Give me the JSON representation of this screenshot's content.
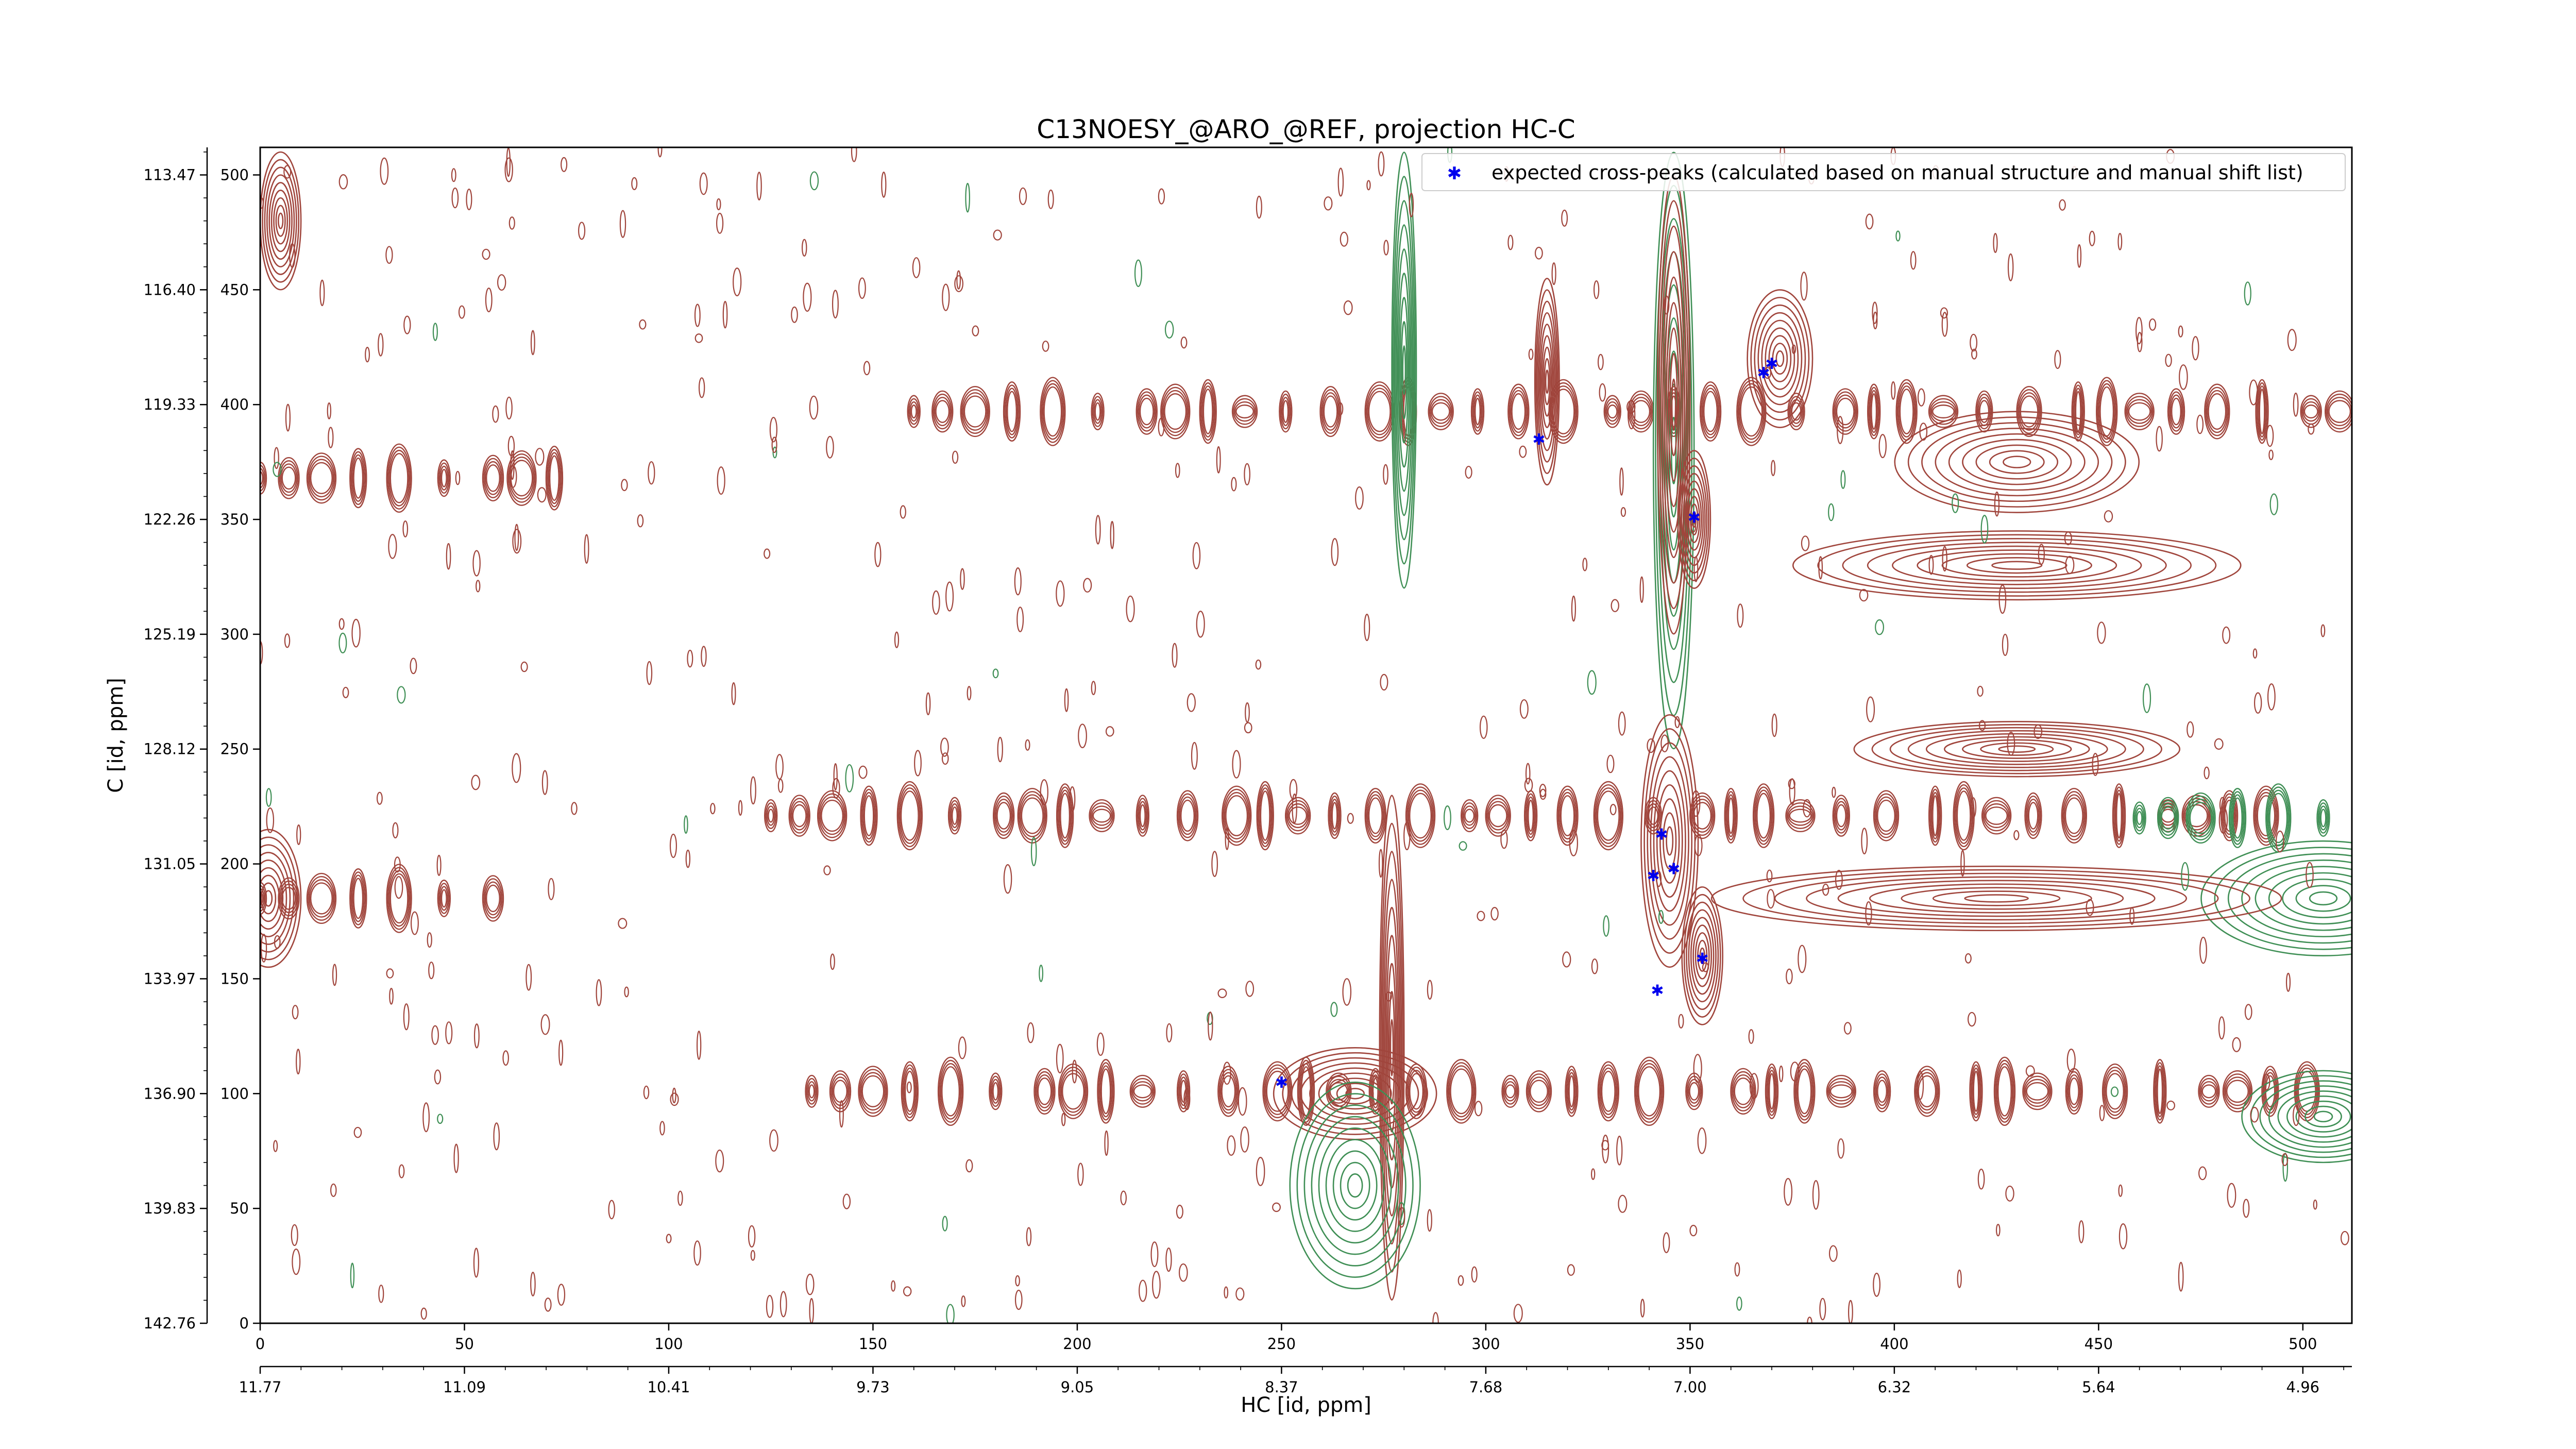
{
  "chart_data": {
    "type": "scatter",
    "title": "C13NOESY_@ARO_@REF, projection HC-C",
    "xlabel": "HC [id, ppm]",
    "ylabel": "C [id, ppm]",
    "xlim": [
      0,
      512
    ],
    "ylim": [
      0,
      512
    ],
    "x_ticks": [
      0,
      50,
      100,
      150,
      200,
      250,
      300,
      350,
      400,
      450,
      500
    ],
    "x_ppm_ticks": [
      "11.77",
      "11.09",
      "10.41",
      "9.73",
      "9.05",
      "8.37",
      "7.68",
      "7.00",
      "6.32",
      "5.64",
      "4.96"
    ],
    "y_ticks": [
      0,
      50,
      100,
      150,
      200,
      250,
      300,
      350,
      400,
      450,
      500
    ],
    "y_ppm_ticks": [
      "142.76",
      "139.83",
      "136.90",
      "133.97",
      "131.05",
      "128.12",
      "125.19",
      "122.26",
      "119.33",
      "116.40",
      "113.47"
    ],
    "legend": {
      "placement": "top-right"
    },
    "colors": {
      "positive": "#a0453c",
      "negative": "#3f8f55",
      "peaks": "#0000ee"
    },
    "series": [
      {
        "name": "expected cross-peaks (calculated based on manual structure and manual shift list)",
        "marker": "star",
        "points": [
          [
            250,
            105
          ],
          [
            313,
            385
          ],
          [
            351,
            351
          ],
          [
            368,
            414
          ],
          [
            370,
            418
          ],
          [
            343,
            213
          ],
          [
            341,
            195
          ],
          [
            346,
            198
          ],
          [
            342,
            145
          ],
          [
            353,
            159
          ]
        ]
      }
    ],
    "contour_features": [
      {
        "sign": "negative",
        "x": 280,
        "y": 415,
        "wx": 3,
        "wy": 95
      },
      {
        "sign": "negative",
        "x": 346,
        "y": 380,
        "wx": 5,
        "wy": 130
      },
      {
        "sign": "positive",
        "x": 346,
        "y": 400,
        "wx": 4,
        "wy": 100
      },
      {
        "sign": "positive",
        "x": 315,
        "y": 410,
        "wx": 3,
        "wy": 45
      },
      {
        "sign": "positive",
        "x": 372,
        "y": 420,
        "wx": 8,
        "wy": 30
      },
      {
        "sign": "positive",
        "x": 351,
        "y": 350,
        "wx": 4,
        "wy": 30
      },
      {
        "sign": "positive",
        "x": 345,
        "y": 210,
        "wx": 7,
        "wy": 55
      },
      {
        "sign": "positive",
        "x": 353,
        "y": 160,
        "wx": 5,
        "wy": 30
      },
      {
        "sign": "positive",
        "x": 277,
        "y": 120,
        "wx": 3,
        "wy": 110
      },
      {
        "sign": "positive",
        "x": 268,
        "y": 100,
        "wx": 20,
        "wy": 20
      },
      {
        "sign": "negative",
        "x": 268,
        "y": 60,
        "wx": 16,
        "wy": 45
      },
      {
        "sign": "positive",
        "x": 2,
        "y": 185,
        "wx": 8,
        "wy": 30
      },
      {
        "sign": "positive",
        "x": 5,
        "y": 480,
        "wx": 5,
        "wy": 30
      },
      {
        "sign": "negative",
        "x": 505,
        "y": 185,
        "wx": 30,
        "wy": 25
      },
      {
        "sign": "negative",
        "x": 505,
        "y": 90,
        "wx": 20,
        "wy": 20
      },
      {
        "sign": "positive",
        "x": 430,
        "y": 250,
        "wx": 40,
        "wy": 12
      },
      {
        "sign": "positive",
        "x": 430,
        "y": 330,
        "wx": 55,
        "wy": 15
      },
      {
        "sign": "positive",
        "x": 425,
        "y": 185,
        "wx": 70,
        "wy": 14
      },
      {
        "sign": "positive",
        "x": 430,
        "y": 375,
        "wx": 30,
        "wy": 22
      }
    ],
    "bands": [
      {
        "sign": "positive",
        "y": 397,
        "x0": 160,
        "x1": 510
      },
      {
        "sign": "positive",
        "y": 221,
        "x0": 125,
        "x1": 500
      },
      {
        "sign": "positive",
        "y": 101,
        "x0": 135,
        "x1": 510
      },
      {
        "sign": "positive",
        "y": 368,
        "x0": 0,
        "x1": 75
      },
      {
        "sign": "positive",
        "y": 185,
        "x0": 0,
        "x1": 60
      },
      {
        "sign": "negative",
        "y": 220,
        "x0": 460,
        "x1": 512
      }
    ]
  }
}
